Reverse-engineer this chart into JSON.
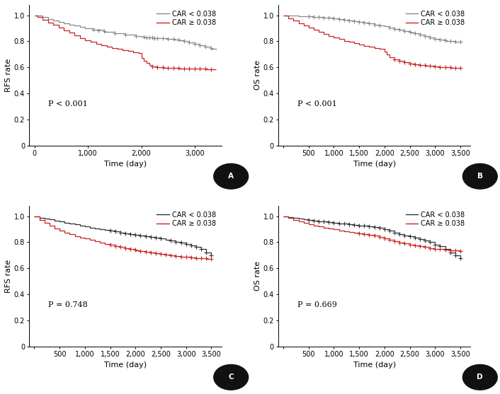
{
  "panels": [
    {
      "label": "A",
      "ylabel": "RFS rate",
      "xlabel": "Time (day)",
      "pvalue": "P < 0.001",
      "xlim": [
        -100,
        3500
      ],
      "xticks": [
        0,
        1000,
        2000,
        3000
      ],
      "xticklabels": [
        "0",
        "1,000",
        "2,000",
        "3,000"
      ],
      "ylim": [
        0,
        1.08
      ],
      "yticks": [
        0,
        0.2,
        0.4,
        0.6,
        0.8,
        1.0
      ],
      "curve1_color": "#888888",
      "curve2_color": "#cc2222",
      "curve1_label": "CAR < 0.038",
      "curve2_label": "CAR ≥ 0.038",
      "curve1_x": [
        0,
        50,
        150,
        250,
        350,
        450,
        550,
        650,
        750,
        850,
        950,
        1100,
        1300,
        1500,
        1700,
        1900,
        2000,
        2050,
        2100,
        2150,
        2200,
        2300,
        2400,
        2500,
        2600,
        2700,
        2800,
        2900,
        3000,
        3100,
        3200,
        3300,
        3400
      ],
      "curve1_y": [
        1.0,
        1.0,
        0.985,
        0.97,
        0.96,
        0.95,
        0.94,
        0.93,
        0.92,
        0.91,
        0.9,
        0.89,
        0.875,
        0.862,
        0.85,
        0.84,
        0.835,
        0.832,
        0.83,
        0.828,
        0.826,
        0.825,
        0.824,
        0.82,
        0.815,
        0.81,
        0.8,
        0.79,
        0.78,
        0.77,
        0.76,
        0.745,
        0.735
      ],
      "curve2_x": [
        0,
        50,
        150,
        250,
        350,
        450,
        550,
        650,
        750,
        850,
        950,
        1050,
        1150,
        1250,
        1350,
        1450,
        1550,
        1650,
        1750,
        1850,
        1950,
        2000,
        2050,
        2100,
        2150,
        2200,
        2300,
        2400,
        2500,
        2600,
        2700,
        2800,
        2900,
        3000,
        3100,
        3200,
        3300,
        3400
      ],
      "curve2_y": [
        1.0,
        0.985,
        0.965,
        0.945,
        0.925,
        0.905,
        0.885,
        0.865,
        0.845,
        0.825,
        0.81,
        0.795,
        0.78,
        0.77,
        0.758,
        0.748,
        0.74,
        0.732,
        0.724,
        0.716,
        0.708,
        0.67,
        0.65,
        0.635,
        0.618,
        0.605,
        0.6,
        0.598,
        0.596,
        0.594,
        0.593,
        0.591,
        0.59,
        0.589,
        0.588,
        0.587,
        0.586,
        0.585
      ],
      "censor1_x": [
        1100,
        1200,
        1300,
        1500,
        1700,
        1900,
        2050,
        2100,
        2150,
        2200,
        2250,
        2300,
        2400,
        2500,
        2600,
        2700,
        2800,
        2900,
        3000,
        3100,
        3200,
        3300
      ],
      "censor1_y": [
        0.892,
        0.882,
        0.877,
        0.864,
        0.852,
        0.842,
        0.833,
        0.831,
        0.829,
        0.827,
        0.826,
        0.825,
        0.824,
        0.821,
        0.816,
        0.811,
        0.801,
        0.791,
        0.781,
        0.771,
        0.761,
        0.746
      ],
      "censor2_x": [
        2200,
        2300,
        2400,
        2500,
        2600,
        2700,
        2800,
        2900,
        3000,
        3100,
        3200,
        3300
      ],
      "censor2_y": [
        0.606,
        0.601,
        0.599,
        0.597,
        0.595,
        0.594,
        0.592,
        0.591,
        0.59,
        0.589,
        0.588,
        0.587
      ]
    },
    {
      "label": "B",
      "ylabel": "OS rate",
      "xlabel": "Time (day)",
      "pvalue": "P < 0.001",
      "xlim": [
        -100,
        3700
      ],
      "xticks": [
        0,
        500,
        1000,
        1500,
        2000,
        2500,
        3000,
        3500
      ],
      "xticklabels": [
        "",
        "500",
        "1,000",
        "1,500",
        "2,000",
        "2,500",
        "3,000",
        "3,500"
      ],
      "ylim": [
        0,
        1.08
      ],
      "yticks": [
        0,
        0.2,
        0.4,
        0.6,
        0.8,
        1.0
      ],
      "curve1_color": "#888888",
      "curve2_color": "#cc2222",
      "curve1_label": "CAR < 0.038",
      "curve2_label": "CAR ≥ 0.038",
      "curve1_x": [
        0,
        100,
        200,
        300,
        400,
        500,
        600,
        700,
        800,
        900,
        1000,
        1100,
        1200,
        1300,
        1400,
        1500,
        1600,
        1700,
        1800,
        1900,
        2000,
        2100,
        2200,
        2300,
        2400,
        2500,
        2600,
        2700,
        2800,
        2900,
        3000,
        3100,
        3200,
        3300,
        3400,
        3500
      ],
      "curve1_y": [
        1.0,
        0.998,
        0.996,
        0.994,
        0.992,
        0.99,
        0.988,
        0.986,
        0.984,
        0.982,
        0.978,
        0.972,
        0.966,
        0.96,
        0.954,
        0.948,
        0.942,
        0.936,
        0.93,
        0.924,
        0.916,
        0.906,
        0.896,
        0.887,
        0.878,
        0.87,
        0.862,
        0.85,
        0.84,
        0.83,
        0.82,
        0.812,
        0.805,
        0.8,
        0.798,
        0.796
      ],
      "curve2_x": [
        0,
        100,
        200,
        300,
        400,
        500,
        600,
        700,
        800,
        900,
        1000,
        1100,
        1200,
        1300,
        1400,
        1500,
        1600,
        1700,
        1800,
        1900,
        2000,
        2050,
        2100,
        2200,
        2300,
        2400,
        2500,
        2600,
        2700,
        2800,
        2900,
        3000,
        3100,
        3200,
        3300,
        3400,
        3500
      ],
      "curve2_y": [
        1.0,
        0.978,
        0.958,
        0.94,
        0.922,
        0.905,
        0.888,
        0.872,
        0.856,
        0.842,
        0.828,
        0.816,
        0.805,
        0.795,
        0.785,
        0.775,
        0.766,
        0.757,
        0.748,
        0.74,
        0.72,
        0.7,
        0.68,
        0.662,
        0.648,
        0.638,
        0.63,
        0.624,
        0.618,
        0.614,
        0.61,
        0.606,
        0.602,
        0.6,
        0.598,
        0.596,
        0.594
      ],
      "censor1_x": [
        500,
        600,
        700,
        800,
        900,
        1000,
        1100,
        1200,
        1300,
        1400,
        1500,
        1600,
        1700,
        1800,
        1900,
        2100,
        2200,
        2300,
        2400,
        2500,
        2600,
        2700,
        2800,
        2900,
        3000,
        3100,
        3200,
        3300,
        3400,
        3500
      ],
      "censor1_y": [
        0.99,
        0.988,
        0.986,
        0.984,
        0.982,
        0.978,
        0.972,
        0.966,
        0.96,
        0.954,
        0.948,
        0.942,
        0.936,
        0.93,
        0.924,
        0.907,
        0.897,
        0.888,
        0.879,
        0.871,
        0.863,
        0.851,
        0.841,
        0.831,
        0.821,
        0.813,
        0.806,
        0.801,
        0.799,
        0.797
      ],
      "censor2_x": [
        2200,
        2300,
        2400,
        2500,
        2600,
        2700,
        2800,
        2900,
        3000,
        3100,
        3200,
        3300,
        3400,
        3500
      ],
      "censor2_y": [
        0.663,
        0.649,
        0.639,
        0.631,
        0.625,
        0.619,
        0.615,
        0.611,
        0.607,
        0.603,
        0.601,
        0.599,
        0.597,
        0.595
      ]
    },
    {
      "label": "C",
      "ylabel": "RFS rate",
      "xlabel": "Time (day)",
      "pvalue": "P = 0.748",
      "xlim": [
        -100,
        3700
      ],
      "xticks": [
        0,
        500,
        1000,
        1500,
        2000,
        2500,
        3000,
        3500
      ],
      "xticklabels": [
        "",
        "500",
        "1,000",
        "1,500",
        "2,000",
        "2,500",
        "3,000",
        "3,500"
      ],
      "ylim": [
        0,
        1.08
      ],
      "yticks": [
        0,
        0.2,
        0.4,
        0.6,
        0.8,
        1.0
      ],
      "curve1_color": "#333333",
      "curve2_color": "#cc2222",
      "curve1_label": "CAR < 0.038",
      "curve2_label": "CAR ≥ 0.038",
      "curve1_x": [
        0,
        100,
        200,
        300,
        400,
        500,
        600,
        700,
        800,
        900,
        1000,
        1100,
        1200,
        1300,
        1400,
        1500,
        1600,
        1700,
        1800,
        1900,
        2000,
        2100,
        2200,
        2300,
        2400,
        2500,
        2600,
        2700,
        2800,
        2900,
        3000,
        3100,
        3200,
        3300,
        3400,
        3500
      ],
      "curve1_y": [
        1.0,
        0.99,
        0.982,
        0.975,
        0.968,
        0.96,
        0.952,
        0.944,
        0.936,
        0.928,
        0.92,
        0.913,
        0.906,
        0.9,
        0.894,
        0.888,
        0.882,
        0.876,
        0.87,
        0.864,
        0.858,
        0.852,
        0.846,
        0.84,
        0.835,
        0.83,
        0.82,
        0.812,
        0.804,
        0.796,
        0.788,
        0.775,
        0.762,
        0.75,
        0.72,
        0.7
      ],
      "curve2_x": [
        0,
        100,
        200,
        300,
        400,
        500,
        600,
        700,
        800,
        900,
        1000,
        1100,
        1200,
        1300,
        1400,
        1500,
        1600,
        1700,
        1800,
        1900,
        2000,
        2100,
        2200,
        2300,
        2400,
        2500,
        2600,
        2700,
        2800,
        2900,
        3000,
        3100,
        3200,
        3300,
        3400,
        3500
      ],
      "curve2_y": [
        1.0,
        0.97,
        0.948,
        0.928,
        0.908,
        0.89,
        0.874,
        0.86,
        0.848,
        0.838,
        0.828,
        0.818,
        0.808,
        0.798,
        0.789,
        0.78,
        0.772,
        0.764,
        0.756,
        0.748,
        0.74,
        0.733,
        0.726,
        0.72,
        0.714,
        0.708,
        0.703,
        0.698,
        0.694,
        0.69,
        0.686,
        0.682,
        0.679,
        0.676,
        0.674,
        0.672
      ],
      "censor1_x": [
        1500,
        1600,
        1700,
        1800,
        1900,
        2000,
        2100,
        2200,
        2300,
        2400,
        2500,
        2700,
        2800,
        2900,
        3000,
        3100,
        3200,
        3300,
        3400,
        3500
      ],
      "censor1_y": [
        0.888,
        0.882,
        0.876,
        0.87,
        0.864,
        0.858,
        0.852,
        0.846,
        0.84,
        0.835,
        0.83,
        0.813,
        0.805,
        0.797,
        0.789,
        0.776,
        0.763,
        0.751,
        0.721,
        0.701
      ],
      "censor2_x": [
        1500,
        1600,
        1700,
        1800,
        1900,
        2000,
        2100,
        2200,
        2300,
        2400,
        2500,
        2600,
        2700,
        2800,
        2900,
        3000,
        3100,
        3200,
        3300,
        3400,
        3500
      ],
      "censor2_y": [
        0.78,
        0.772,
        0.764,
        0.756,
        0.748,
        0.741,
        0.734,
        0.727,
        0.721,
        0.715,
        0.709,
        0.704,
        0.699,
        0.695,
        0.691,
        0.687,
        0.683,
        0.68,
        0.677,
        0.675,
        0.673
      ]
    },
    {
      "label": "D",
      "ylabel": "OS rate",
      "xlabel": "Time (day)",
      "pvalue": "P = 0.669",
      "xlim": [
        -100,
        3700
      ],
      "xticks": [
        0,
        500,
        1000,
        1500,
        2000,
        2500,
        3000,
        3500
      ],
      "xticklabels": [
        "",
        "500",
        "1,000",
        "1,500",
        "2,000",
        "2,500",
        "3,000",
        "3,500"
      ],
      "ylim": [
        0,
        1.08
      ],
      "yticks": [
        0,
        0.2,
        0.4,
        0.6,
        0.8,
        1.0
      ],
      "curve1_color": "#333333",
      "curve2_color": "#cc2222",
      "curve1_label": "CAR < 0.038",
      "curve2_label": "CAR ≥ 0.038",
      "curve1_x": [
        0,
        100,
        200,
        300,
        400,
        500,
        600,
        700,
        800,
        900,
        1000,
        1100,
        1200,
        1300,
        1400,
        1500,
        1600,
        1700,
        1800,
        1900,
        2000,
        2100,
        2200,
        2300,
        2400,
        2500,
        2600,
        2700,
        2800,
        2900,
        3000,
        3100,
        3200,
        3300,
        3400,
        3500
      ],
      "curve1_y": [
        1.0,
        0.993,
        0.988,
        0.982,
        0.977,
        0.972,
        0.967,
        0.962,
        0.958,
        0.954,
        0.95,
        0.946,
        0.942,
        0.938,
        0.934,
        0.93,
        0.926,
        0.922,
        0.918,
        0.91,
        0.9,
        0.888,
        0.876,
        0.864,
        0.854,
        0.844,
        0.835,
        0.825,
        0.815,
        0.8,
        0.782,
        0.768,
        0.75,
        0.72,
        0.7,
        0.68
      ],
      "curve2_x": [
        0,
        100,
        200,
        300,
        400,
        500,
        600,
        700,
        800,
        900,
        1000,
        1100,
        1200,
        1300,
        1400,
        1500,
        1600,
        1700,
        1800,
        1900,
        2000,
        2100,
        2200,
        2300,
        2400,
        2500,
        2600,
        2700,
        2800,
        2900,
        3000,
        3100,
        3200,
        3300,
        3400,
        3500
      ],
      "curve2_y": [
        1.0,
        0.985,
        0.972,
        0.96,
        0.95,
        0.94,
        0.93,
        0.921,
        0.913,
        0.906,
        0.899,
        0.892,
        0.885,
        0.879,
        0.873,
        0.867,
        0.861,
        0.855,
        0.849,
        0.843,
        0.832,
        0.82,
        0.808,
        0.798,
        0.79,
        0.782,
        0.775,
        0.768,
        0.762,
        0.756,
        0.75,
        0.746,
        0.742,
        0.738,
        0.735,
        0.732
      ],
      "censor1_x": [
        500,
        600,
        700,
        800,
        900,
        1000,
        1100,
        1200,
        1300,
        1400,
        1500,
        1600,
        1700,
        1800,
        1900,
        2000,
        2100,
        2200,
        2300,
        2400,
        2500,
        2600,
        2700,
        2800,
        2900,
        3000,
        3100,
        3200,
        3300,
        3400,
        3500
      ],
      "censor1_y": [
        0.972,
        0.967,
        0.962,
        0.958,
        0.954,
        0.95,
        0.946,
        0.942,
        0.938,
        0.934,
        0.93,
        0.926,
        0.922,
        0.918,
        0.91,
        0.9,
        0.888,
        0.876,
        0.864,
        0.854,
        0.844,
        0.835,
        0.825,
        0.815,
        0.8,
        0.782,
        0.768,
        0.75,
        0.72,
        0.7,
        0.68
      ],
      "censor2_x": [
        1500,
        1600,
        1700,
        1800,
        1900,
        2000,
        2100,
        2200,
        2300,
        2400,
        2500,
        2600,
        2700,
        2800,
        2900,
        3000,
        3100,
        3200,
        3300,
        3400,
        3500
      ],
      "censor2_y": [
        0.867,
        0.861,
        0.855,
        0.849,
        0.843,
        0.832,
        0.82,
        0.808,
        0.798,
        0.79,
        0.782,
        0.775,
        0.768,
        0.762,
        0.756,
        0.75,
        0.746,
        0.742,
        0.738,
        0.735,
        0.732
      ]
    }
  ],
  "background_color": "#ffffff",
  "font_size": 7,
  "label_font_size": 8,
  "legend_font_size": 7,
  "pvalue_font_size": 8
}
